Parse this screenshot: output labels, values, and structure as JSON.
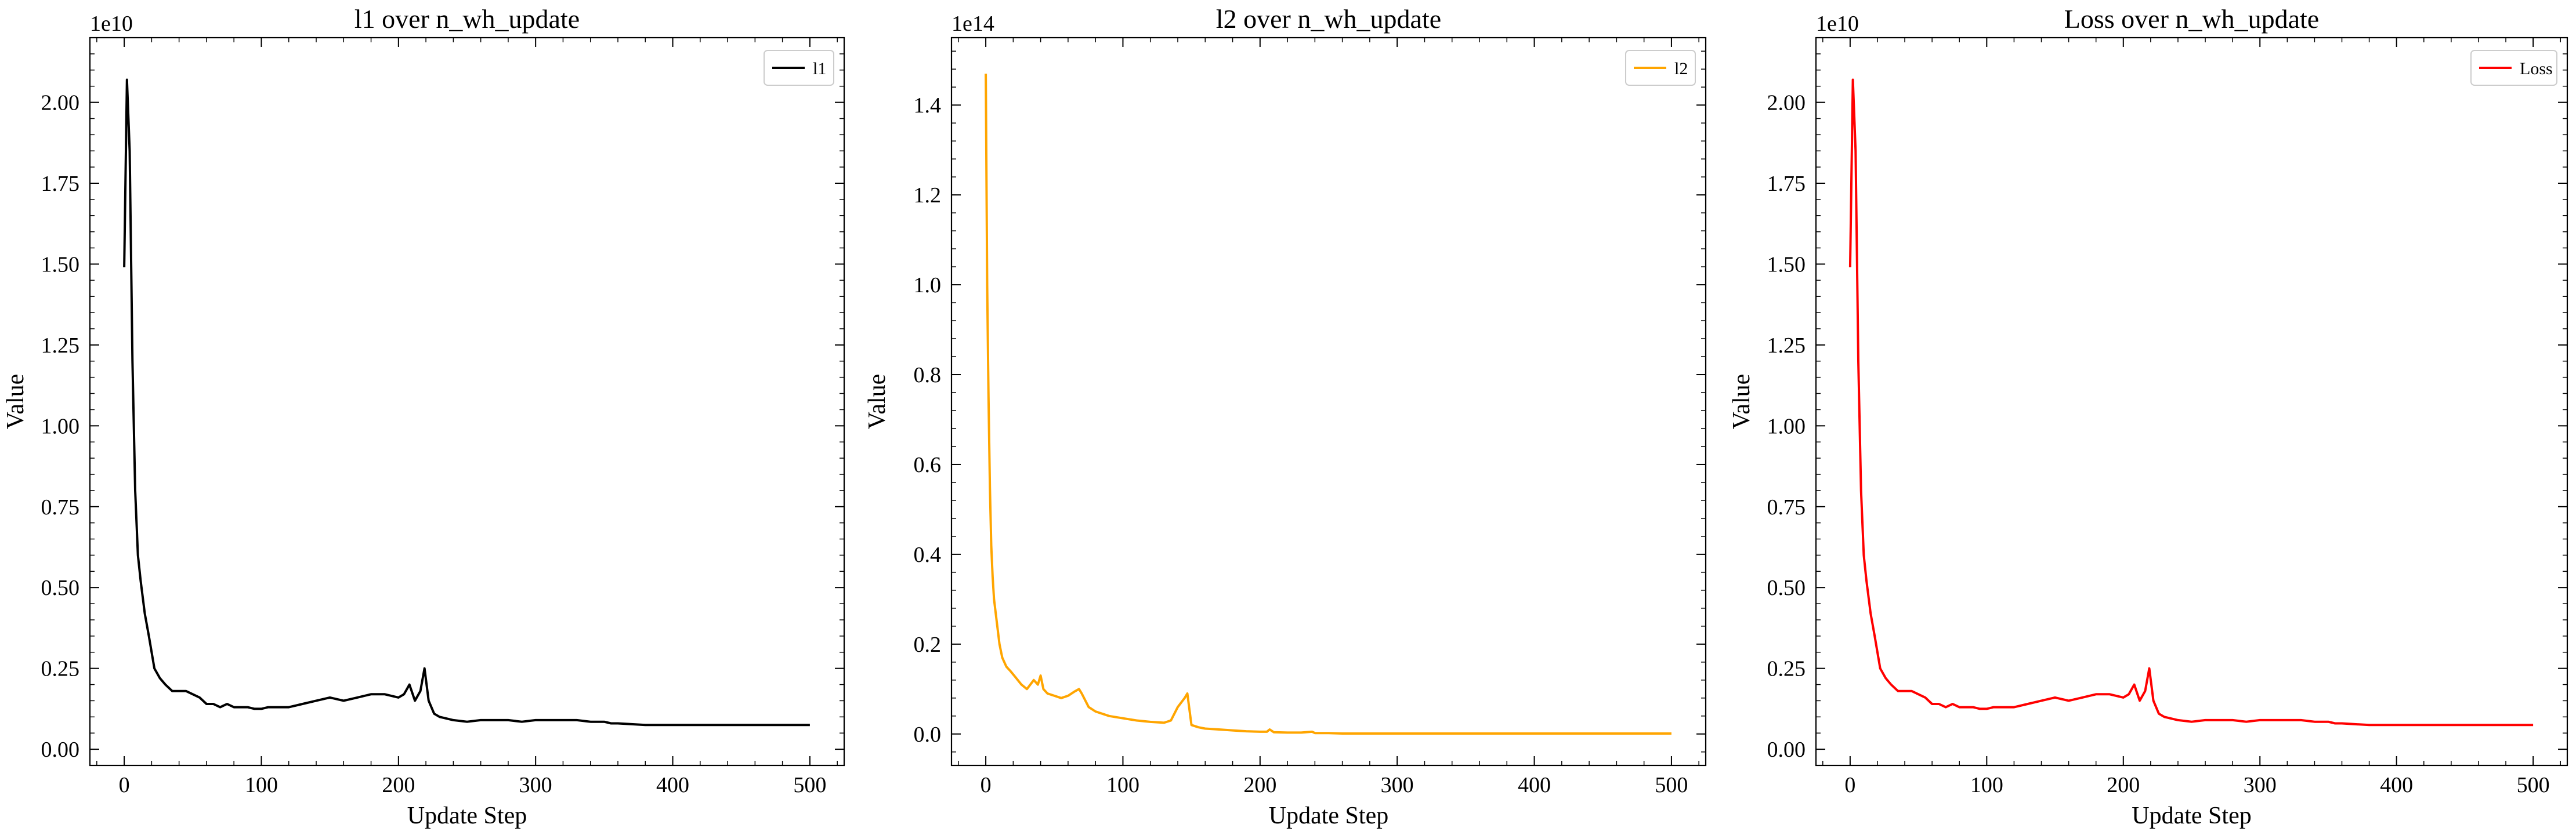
{
  "chart_data": [
    {
      "type": "line",
      "title": "l1 over n_wh_update",
      "xlabel": "Update Step",
      "ylabel": "Value",
      "offset_text": "1e10",
      "xlim": [
        -25,
        525
      ],
      "ylim": [
        -0.05,
        2.2
      ],
      "xticks": [
        0,
        100,
        200,
        300,
        400,
        500
      ],
      "yticks": [
        0.0,
        0.25,
        0.5,
        0.75,
        1.0,
        1.25,
        1.5,
        1.75,
        2.0
      ],
      "ytick_labels": [
        "0.00",
        "0.25",
        "0.50",
        "0.75",
        "1.00",
        "1.25",
        "1.50",
        "1.75",
        "2.00"
      ],
      "xtick_labels": [
        "0",
        "100",
        "200",
        "300",
        "400",
        "500"
      ],
      "legend": "top-right",
      "series": [
        {
          "name": "l1",
          "color": "#000000",
          "x": [
            0,
            2,
            4,
            6,
            8,
            10,
            12,
            15,
            18,
            22,
            26,
            30,
            35,
            40,
            45,
            50,
            55,
            60,
            65,
            70,
            75,
            80,
            85,
            90,
            95,
            100,
            105,
            110,
            120,
            130,
            140,
            150,
            160,
            170,
            180,
            190,
            200,
            204,
            208,
            212,
            216,
            219,
            222,
            226,
            230,
            240,
            250,
            260,
            270,
            280,
            290,
            300,
            310,
            320,
            330,
            340,
            350,
            355,
            360,
            380,
            400,
            420,
            440,
            460,
            480,
            500
          ],
          "y": [
            1.49,
            2.07,
            1.85,
            1.2,
            0.8,
            0.6,
            0.52,
            0.42,
            0.35,
            0.25,
            0.22,
            0.2,
            0.18,
            0.18,
            0.18,
            0.17,
            0.16,
            0.14,
            0.14,
            0.13,
            0.14,
            0.13,
            0.13,
            0.13,
            0.125,
            0.125,
            0.13,
            0.13,
            0.13,
            0.14,
            0.15,
            0.16,
            0.15,
            0.16,
            0.17,
            0.17,
            0.16,
            0.17,
            0.2,
            0.15,
            0.18,
            0.25,
            0.15,
            0.11,
            0.1,
            0.09,
            0.085,
            0.09,
            0.09,
            0.09,
            0.085,
            0.09,
            0.09,
            0.09,
            0.09,
            0.085,
            0.085,
            0.08,
            0.08,
            0.075,
            0.075,
            0.075,
            0.075,
            0.075,
            0.075,
            0.075
          ]
        }
      ]
    },
    {
      "type": "line",
      "title": "l2 over n_wh_update",
      "xlabel": "Update Step",
      "ylabel": "Value",
      "offset_text": "1e14",
      "xlim": [
        -25,
        525
      ],
      "ylim": [
        -0.07,
        1.55
      ],
      "xticks": [
        0,
        100,
        200,
        300,
        400,
        500
      ],
      "yticks": [
        0.0,
        0.2,
        0.4,
        0.6,
        0.8,
        1.0,
        1.2,
        1.4
      ],
      "ytick_labels": [
        "0.0",
        "0.2",
        "0.4",
        "0.6",
        "0.8",
        "1.0",
        "1.2",
        "1.4"
      ],
      "xtick_labels": [
        "0",
        "100",
        "200",
        "300",
        "400",
        "500"
      ],
      "legend": "top-right",
      "series": [
        {
          "name": "l2",
          "color": "#ffa500",
          "x": [
            0,
            1,
            2,
            3,
            4,
            5,
            6,
            8,
            10,
            12,
            15,
            18,
            22,
            26,
            30,
            35,
            38,
            40,
            42,
            45,
            50,
            55,
            60,
            65,
            68,
            70,
            75,
            80,
            90,
            100,
            110,
            120,
            130,
            135,
            140,
            145,
            147,
            150,
            155,
            160,
            170,
            180,
            190,
            200,
            205,
            207,
            210,
            220,
            230,
            238,
            240,
            245,
            250,
            260,
            300,
            350,
            400,
            450,
            500
          ],
          "y": [
            1.47,
            1.0,
            0.75,
            0.55,
            0.42,
            0.35,
            0.3,
            0.25,
            0.2,
            0.17,
            0.15,
            0.14,
            0.125,
            0.11,
            0.1,
            0.12,
            0.11,
            0.13,
            0.1,
            0.09,
            0.085,
            0.08,
            0.085,
            0.095,
            0.1,
            0.09,
            0.06,
            0.05,
            0.04,
            0.035,
            0.03,
            0.027,
            0.025,
            0.03,
            0.06,
            0.08,
            0.09,
            0.02,
            0.015,
            0.012,
            0.01,
            0.008,
            0.006,
            0.005,
            0.005,
            0.01,
            0.004,
            0.003,
            0.003,
            0.005,
            0.002,
            0.002,
            0.002,
            0.001,
            0.001,
            0.001,
            0.001,
            0.001,
            0.001
          ]
        }
      ]
    },
    {
      "type": "line",
      "title": "Loss over n_wh_update",
      "xlabel": "Update Step",
      "ylabel": "Value",
      "offset_text": "1e10",
      "xlim": [
        -25,
        525
      ],
      "ylim": [
        -0.05,
        2.2
      ],
      "xticks": [
        0,
        100,
        200,
        300,
        400,
        500
      ],
      "yticks": [
        0.0,
        0.25,
        0.5,
        0.75,
        1.0,
        1.25,
        1.5,
        1.75,
        2.0
      ],
      "ytick_labels": [
        "0.00",
        "0.25",
        "0.50",
        "0.75",
        "1.00",
        "1.25",
        "1.50",
        "1.75",
        "2.00"
      ],
      "xtick_labels": [
        "0",
        "100",
        "200",
        "300",
        "400",
        "500"
      ],
      "legend": "top-right",
      "series": [
        {
          "name": "Loss",
          "color": "#ff0000",
          "x": [
            0,
            2,
            4,
            6,
            8,
            10,
            12,
            15,
            18,
            22,
            26,
            30,
            35,
            40,
            45,
            50,
            55,
            60,
            65,
            70,
            75,
            80,
            85,
            90,
            95,
            100,
            105,
            110,
            120,
            130,
            140,
            150,
            160,
            170,
            180,
            190,
            200,
            204,
            208,
            212,
            216,
            219,
            222,
            226,
            230,
            240,
            250,
            260,
            270,
            280,
            290,
            300,
            310,
            320,
            330,
            340,
            350,
            355,
            360,
            380,
            400,
            420,
            440,
            460,
            480,
            500
          ],
          "y": [
            1.49,
            2.07,
            1.85,
            1.2,
            0.8,
            0.6,
            0.52,
            0.42,
            0.35,
            0.25,
            0.22,
            0.2,
            0.18,
            0.18,
            0.18,
            0.17,
            0.16,
            0.14,
            0.14,
            0.13,
            0.14,
            0.13,
            0.13,
            0.13,
            0.125,
            0.125,
            0.13,
            0.13,
            0.13,
            0.14,
            0.15,
            0.16,
            0.15,
            0.16,
            0.17,
            0.17,
            0.16,
            0.17,
            0.2,
            0.15,
            0.18,
            0.25,
            0.15,
            0.11,
            0.1,
            0.09,
            0.085,
            0.09,
            0.09,
            0.09,
            0.085,
            0.09,
            0.09,
            0.09,
            0.09,
            0.085,
            0.085,
            0.08,
            0.08,
            0.075,
            0.075,
            0.075,
            0.075,
            0.075,
            0.075,
            0.075
          ]
        }
      ]
    }
  ]
}
